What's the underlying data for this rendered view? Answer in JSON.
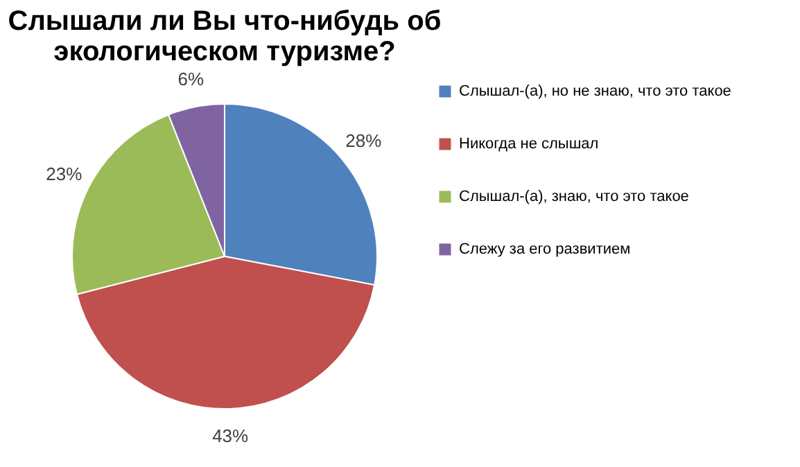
{
  "chart_data": {
    "type": "pie",
    "title": "Слышали ли Вы что-нибудь об экологическом туризме?",
    "categories": [
      "Слышал-(а), но не знаю, что это такое",
      "Никогда не слышал",
      "Слышал-(а), знаю, что это такое",
      "Слежу за его развитием"
    ],
    "values": [
      28,
      43,
      23,
      6
    ],
    "colors": [
      "#4f81bd",
      "#c0504d",
      "#9bbb59",
      "#8064a2"
    ],
    "value_labels": [
      "28%",
      "43%",
      "23%",
      "6%"
    ],
    "legend": "right"
  }
}
